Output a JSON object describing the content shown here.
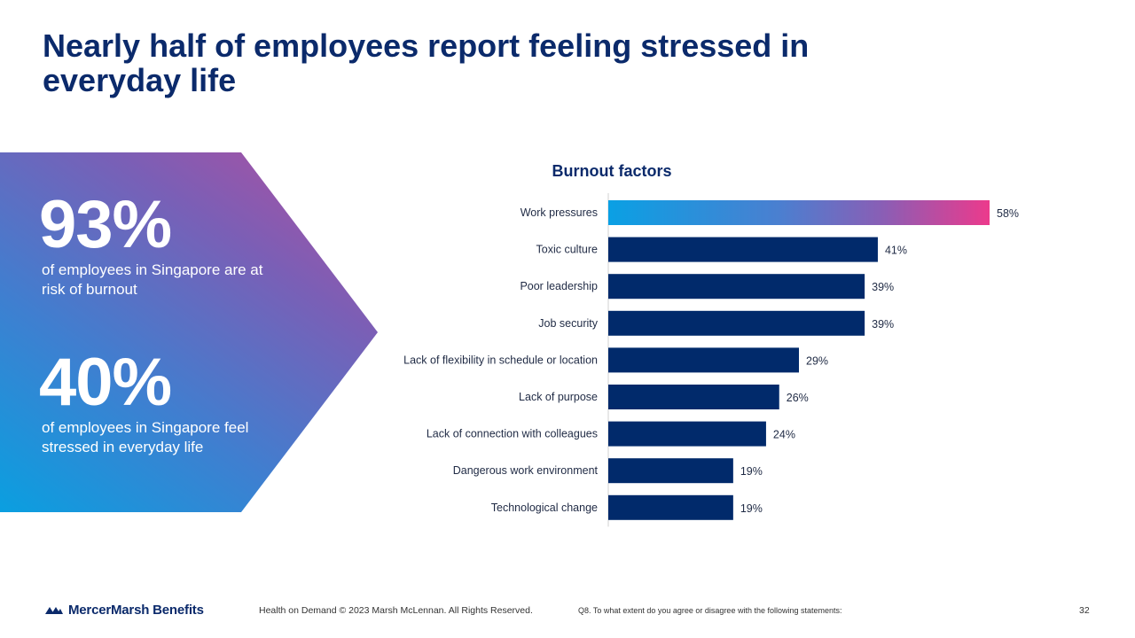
{
  "slide": {
    "title": "Nearly half of employees report feeling stressed in everyday life"
  },
  "stats": [
    {
      "value": "93%",
      "caption": "of employees in Singapore are at risk of burnout"
    },
    {
      "value": "40%",
      "caption": "of employees in Singapore feel stressed in everyday life"
    }
  ],
  "chart_data": {
    "type": "bar",
    "orientation": "horizontal",
    "title": "Burnout factors",
    "categories": [
      "Work pressures",
      "Toxic culture",
      "Poor leadership",
      "Job security",
      "Lack of flexibility in schedule or location",
      "Lack of purpose",
      "Lack of connection with colleagues",
      "Dangerous work environment",
      "Technological change"
    ],
    "values": [
      58,
      41,
      39,
      39,
      29,
      26,
      24,
      19,
      19
    ],
    "value_labels": [
      "58%",
      "41%",
      "39%",
      "39%",
      "29%",
      "26%",
      "24%",
      "19%",
      "19%"
    ],
    "xlim": [
      0,
      60
    ],
    "grid": false,
    "legend": "none",
    "colors": {
      "bar": "#012a6b",
      "highlight_gradient": [
        "#0aa0e4",
        "#ec3a8c"
      ]
    }
  },
  "footer": {
    "logo_text": "MercerMarsh Benefits",
    "copyright": "Health on Demand © 2023 Marsh McLennan. All Rights Reserved.",
    "question": "Q8. To what extent do you agree or disagree with the following statements:",
    "page_number": "32"
  }
}
